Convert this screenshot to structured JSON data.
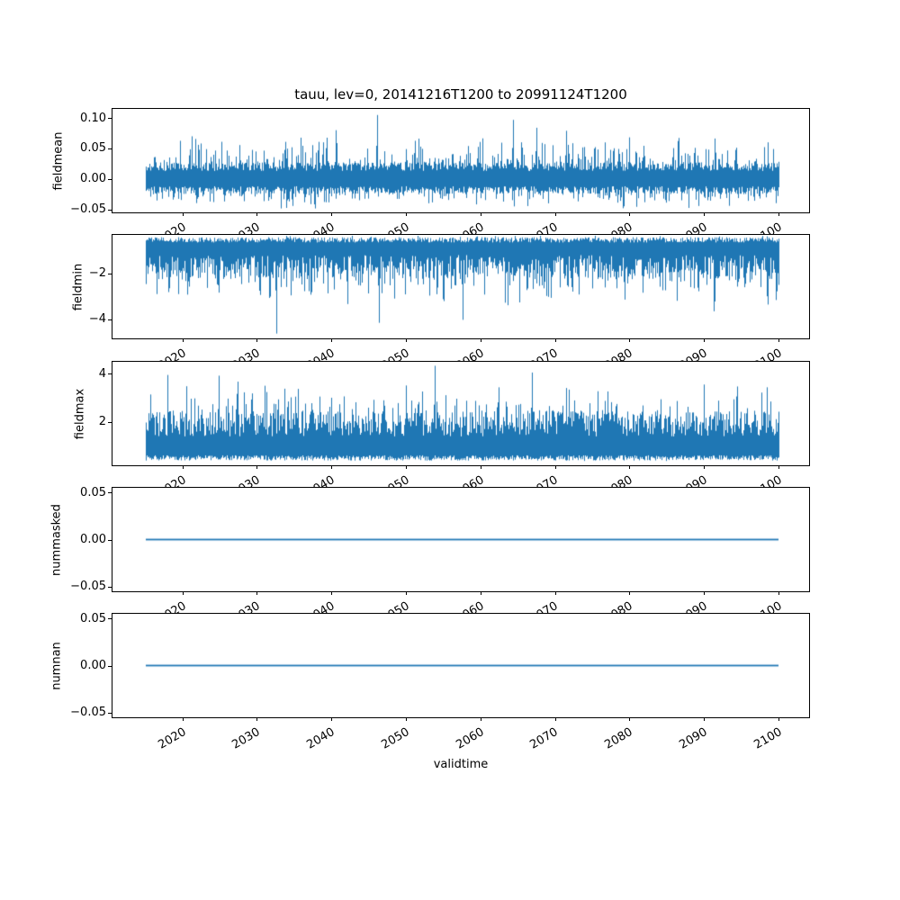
{
  "figure": {
    "title": "tauu, lev=0, 20141216T1200 to 20991124T1200",
    "xlabel": "validtime",
    "background_color": "#ffffff",
    "line_color": "#1f77b4",
    "text_color": "#000000"
  },
  "chart_data": [
    {
      "type": "line",
      "name": "fieldmean",
      "ylabel": "fieldmean",
      "xlabel": "",
      "x": {
        "start_year": 2014.96,
        "end_year": 2099.9,
        "xlim": [
          2010.5,
          2104.0
        ],
        "tick_values": [
          2020,
          2030,
          2040,
          2050,
          2060,
          2070,
          2080,
          2090,
          2100
        ],
        "tick_labels": [
          "2020",
          "2030",
          "2040",
          "2050",
          "2060",
          "2070",
          "2080",
          "2090",
          "2100"
        ]
      },
      "ylim": [
        -0.055,
        0.115
      ],
      "ytick_values": [
        0.1,
        0.05,
        0.0,
        -0.05
      ],
      "ytick_labels": [
        "0.10",
        "0.05",
        "0.00",
        "−0.05"
      ],
      "series_summary": {
        "appearance": "dense noisy band around 0",
        "typical_band": [
          -0.022,
          0.022
        ],
        "frequent_spike_range": [
          0.03,
          0.08
        ],
        "min": -0.048,
        "max": 0.105,
        "notable_extremes": [
          [
            2046.0,
            0.105
          ],
          [
            2064.2,
            0.097
          ]
        ]
      },
      "noise": {
        "seed": 11,
        "hi0": 0.013,
        "hi1": 0.014,
        "spike_p": 0.45,
        "spike_a": 0.04,
        "rare_p": 0.03,
        "rare_a": 0.05,
        "hi_max": 0.101,
        "lo0": -0.012,
        "lo1": 0.013,
        "dspike_p": 0.4,
        "dspike_a": 0.024,
        "drare_p": 0.02,
        "drare_a": 0.012,
        "lo_min": -0.0485,
        "forced": [
          [
            2046.0,
            0.105,
            "hi"
          ],
          [
            2064.2,
            0.097,
            "hi"
          ]
        ]
      }
    },
    {
      "type": "line",
      "name": "fieldmin",
      "ylabel": "fieldmin",
      "xlabel": "",
      "x": {
        "start_year": 2014.96,
        "end_year": 2099.9,
        "xlim": [
          2010.5,
          2104.0
        ],
        "tick_values": [
          2020,
          2030,
          2040,
          2050,
          2060,
          2070,
          2080,
          2090,
          2100
        ],
        "tick_labels": [
          "2020",
          "2030",
          "2040",
          "2050",
          "2060",
          "2070",
          "2080",
          "2090",
          "2100"
        ]
      },
      "ylim": [
        -4.83,
        -0.32
      ],
      "ytick_values": [
        -2,
        -4
      ],
      "ytick_labels": [
        "−2",
        "−4"
      ],
      "series_summary": {
        "appearance": "dense noisy band hugging top, downward spikes",
        "typical_band": [
          -2.3,
          -0.45
        ],
        "frequent_spike_range": [
          -3.5,
          -2.5
        ],
        "min": -4.62,
        "max": -0.33,
        "notable_extremes": [
          [
            2032.5,
            -4.62
          ],
          [
            2046.3,
            -4.15
          ],
          [
            2057.5,
            -4.02
          ]
        ]
      },
      "noise": {
        "seed": 22,
        "hi0": -0.42,
        "hi1": -0.23,
        "spike_p": 0.0,
        "spike_a": 0,
        "rare_p": 0.08,
        "rare_a": 0.08,
        "hi_max": -0.33,
        "lo0": -1.2,
        "lo1": 1.05,
        "dspike_p": 0.4,
        "dspike_a": 1.3,
        "drare_p": 0.02,
        "drare_a": 0.9,
        "lo_min": -4.3,
        "forced": [
          [
            2032.5,
            -4.62,
            "lo"
          ],
          [
            2046.3,
            -4.15,
            "lo"
          ],
          [
            2057.5,
            -4.02,
            "lo"
          ]
        ]
      }
    },
    {
      "type": "line",
      "name": "fieldmax",
      "ylabel": "fieldmax",
      "xlabel": "",
      "x": {
        "start_year": 2014.96,
        "end_year": 2099.9,
        "xlim": [
          2010.5,
          2104.0
        ],
        "tick_values": [
          2020,
          2030,
          2040,
          2050,
          2060,
          2070,
          2080,
          2090,
          2100
        ],
        "tick_labels": [
          "2020",
          "2030",
          "2040",
          "2050",
          "2060",
          "2070",
          "2080",
          "2090",
          "2100"
        ]
      },
      "ylim": [
        0.205,
        4.495
      ],
      "ytick_values": [
        4,
        2
      ],
      "ytick_labels": [
        "4",
        "2"
      ],
      "series_summary": {
        "appearance": "dense noisy band hugging bottom, upward spikes",
        "typical_band": [
          0.45,
          2.4
        ],
        "frequent_spike_range": [
          2.6,
          3.5
        ],
        "min": 0.34,
        "max": 4.33,
        "notable_extremes": [
          [
            2053.7,
            4.33
          ],
          [
            2066.8,
            4.05
          ],
          [
            2024.8,
            3.92
          ]
        ]
      },
      "noise": {
        "seed": 33,
        "hi0": 1.4,
        "hi1": 1.05,
        "spike_p": 0.4,
        "spike_a": 1.25,
        "rare_p": 0.02,
        "rare_a": 0.85,
        "hi_max": 3.95,
        "lo0": 0.4,
        "lo1": -0.22,
        "dspike_p": 0.05,
        "dspike_a": 0.06,
        "drare_p": 0.0,
        "drare_a": 0,
        "lo_min": 0.33,
        "forced": [
          [
            2053.7,
            4.33,
            "hi"
          ],
          [
            2066.8,
            4.05,
            "hi"
          ],
          [
            2024.8,
            3.92,
            "hi"
          ]
        ]
      }
    },
    {
      "type": "line",
      "name": "nummasked",
      "ylabel": "nummasked",
      "xlabel": "",
      "x": {
        "start_year": 2014.96,
        "end_year": 2099.9,
        "xlim": [
          2010.5,
          2104.0
        ],
        "tick_values": [
          2020,
          2030,
          2040,
          2050,
          2060,
          2070,
          2080,
          2090,
          2100
        ],
        "tick_labels": [
          "2020",
          "2030",
          "2040",
          "2050",
          "2060",
          "2070",
          "2080",
          "2090",
          "2100"
        ]
      },
      "ylim": [
        -0.055,
        0.055
      ],
      "ytick_values": [
        0.05,
        0.0,
        -0.05
      ],
      "ytick_labels": [
        "0.05",
        "0.00",
        "−0.05"
      ],
      "series_summary": {
        "appearance": "constant flat line",
        "constant_value": 0.0,
        "min": 0.0,
        "max": 0.0,
        "notable_extremes": []
      },
      "flat_value": 0.0
    },
    {
      "type": "line",
      "name": "numnan",
      "ylabel": "numnan",
      "xlabel": "validtime",
      "x": {
        "start_year": 2014.96,
        "end_year": 2099.9,
        "xlim": [
          2010.5,
          2104.0
        ],
        "tick_values": [
          2020,
          2030,
          2040,
          2050,
          2060,
          2070,
          2080,
          2090,
          2100
        ],
        "tick_labels": [
          "2020",
          "2030",
          "2040",
          "2050",
          "2060",
          "2070",
          "2080",
          "2090",
          "2100"
        ]
      },
      "ylim": [
        -0.055,
        0.055
      ],
      "ytick_values": [
        0.05,
        0.0,
        -0.05
      ],
      "ytick_labels": [
        "0.05",
        "0.00",
        "−0.05"
      ],
      "series_summary": {
        "appearance": "constant flat line",
        "constant_value": 0.0,
        "min": 0.0,
        "max": 0.0,
        "notable_extremes": []
      },
      "flat_value": 0.0
    }
  ]
}
